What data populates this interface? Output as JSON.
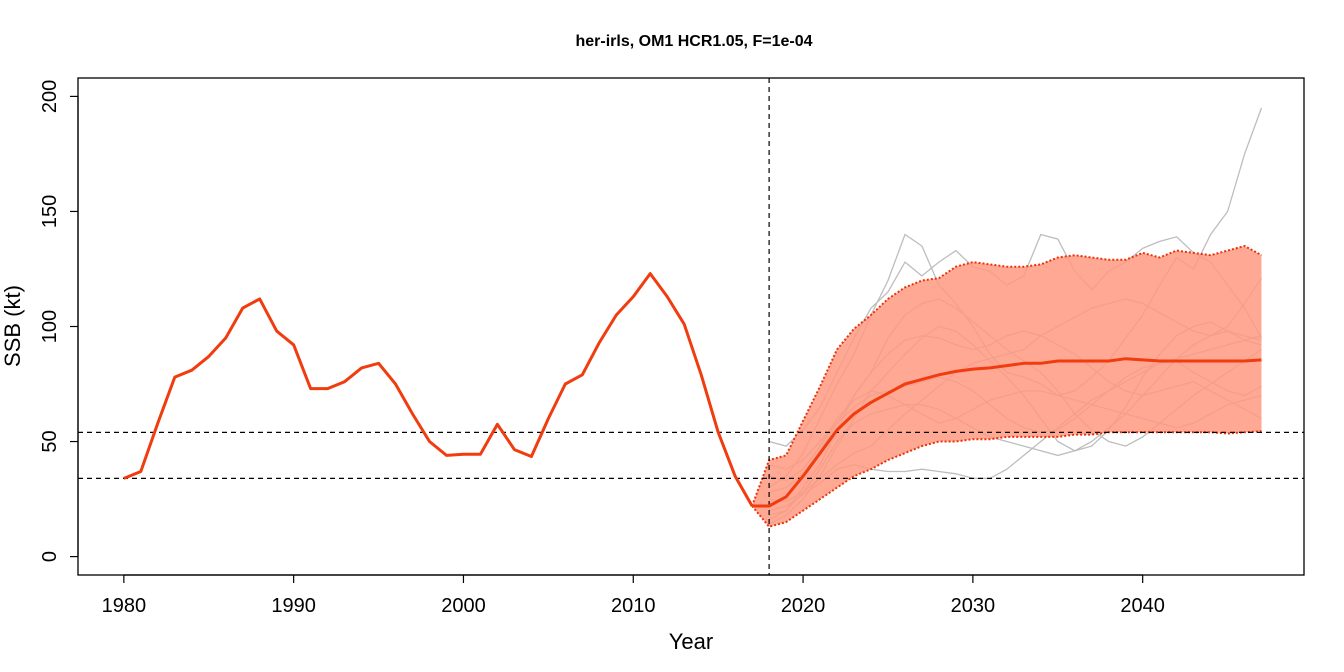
{
  "chart_data": {
    "type": "line",
    "title": "her-irls, OM1 HCR1.05, F=1e-04",
    "xlabel": "Year",
    "ylabel": "SSB (kt)",
    "xlim": [
      1977.3,
      2049.5
    ],
    "ylim": [
      -8,
      208
    ],
    "xticks": [
      1980,
      1990,
      2000,
      2010,
      2020,
      2030,
      2040
    ],
    "yticks": [
      0,
      50,
      100,
      150,
      200
    ],
    "grid": false,
    "colors": {
      "median": "#f03c0f",
      "band_fill": "#ff9a82",
      "band_edge": "#e8330a",
      "iterations": "#bdbdbd",
      "reflines": "#000000"
    },
    "reference_lines": {
      "vertical_x": [
        2018
      ],
      "horizontal_y": [
        54,
        34
      ]
    },
    "historical": {
      "x": [
        1980,
        1981,
        1982,
        1983,
        1984,
        1985,
        1986,
        1987,
        1988,
        1989,
        1990,
        1991,
        1992,
        1993,
        1994,
        1995,
        1996,
        1997,
        1998,
        1999,
        2000,
        2001,
        2002,
        2003,
        2004,
        2005,
        2006,
        2007,
        2008,
        2009,
        2010,
        2011,
        2012,
        2013,
        2014,
        2015,
        2016,
        2017
      ],
      "y": [
        34,
        37,
        58,
        78,
        81,
        87,
        95,
        108,
        112,
        98,
        92,
        73,
        73,
        76,
        82,
        84,
        75,
        62,
        50,
        44,
        44.5,
        44.5,
        57.5,
        46.5,
        43.5,
        60,
        75,
        79,
        93,
        105,
        113,
        123,
        113,
        101,
        79,
        54,
        35,
        22
      ]
    },
    "projection": {
      "x": [
        2017,
        2018,
        2019,
        2020,
        2021,
        2022,
        2023,
        2024,
        2025,
        2026,
        2027,
        2028,
        2029,
        2030,
        2031,
        2032,
        2033,
        2034,
        2035,
        2036,
        2037,
        2038,
        2039,
        2040,
        2041,
        2042,
        2043,
        2044,
        2045,
        2046,
        2047
      ],
      "median": [
        22,
        22,
        26,
        35,
        45,
        55,
        62,
        67,
        71,
        75,
        77,
        79,
        80.5,
        81.5,
        82,
        83,
        84,
        84,
        85,
        85,
        85,
        85,
        86,
        85.5,
        85,
        85,
        85,
        85,
        85,
        85,
        85.5
      ],
      "upper": [
        22,
        42,
        44,
        59,
        74,
        90,
        99,
        105,
        112,
        117,
        120,
        121,
        126,
        128,
        127,
        126,
        126,
        127,
        130,
        131,
        130,
        129,
        129,
        132,
        130,
        133,
        132,
        131,
        133,
        135,
        131
      ],
      "lower": [
        22,
        13,
        15,
        20,
        25,
        30,
        35,
        38,
        42,
        45,
        48,
        50,
        50,
        51,
        51,
        52,
        52,
        52,
        52,
        53,
        53,
        54,
        54,
        54,
        54,
        54,
        54,
        54,
        53.5,
        54,
        54.5
      ]
    },
    "iterations": [
      {
        "x": [
          2018,
          2019,
          2020,
          2021,
          2022,
          2023,
          2024,
          2025,
          2026,
          2027,
          2028,
          2029,
          2030,
          2031,
          2032,
          2033,
          2034,
          2035,
          2036,
          2037,
          2038,
          2039,
          2040,
          2041,
          2042,
          2043,
          2044,
          2045,
          2046,
          2047
        ],
        "y": [
          30,
          35,
          45,
          60,
          75,
          88,
          105,
          120,
          140,
          135,
          118,
          110,
          100,
          88,
          80,
          78,
          75,
          70,
          72,
          78,
          85,
          95,
          105,
          118,
          130,
          125,
          140,
          150,
          175,
          195
        ]
      },
      {
        "x": [
          2018,
          2019,
          2020,
          2021,
          2022,
          2023,
          2024,
          2025,
          2026,
          2027,
          2028,
          2029,
          2030,
          2031,
          2032,
          2033,
          2034,
          2035,
          2036,
          2037,
          2038,
          2039,
          2040,
          2041,
          2042,
          2043,
          2044,
          2045,
          2046,
          2047
        ],
        "y": [
          50,
          48,
          55,
          65,
          80,
          95,
          108,
          115,
          128,
          122,
          128,
          133,
          126,
          124,
          118,
          122,
          140,
          138,
          124,
          116,
          124,
          128,
          134,
          137,
          139,
          132,
          128,
          118,
          108,
          95
        ]
      },
      {
        "x": [
          2018,
          2019,
          2020,
          2021,
          2022,
          2023,
          2024,
          2025,
          2026,
          2027,
          2028,
          2029,
          2030,
          2031,
          2032,
          2033,
          2034,
          2035,
          2036,
          2037,
          2038,
          2039,
          2040,
          2041,
          2042,
          2043,
          2044,
          2045,
          2046,
          2047
        ],
        "y": [
          18,
          20,
          30,
          40,
          55,
          70,
          80,
          95,
          105,
          110,
          112,
          108,
          102,
          96,
          90,
          85,
          80,
          72,
          62,
          55,
          50,
          48,
          52,
          58,
          64,
          70,
          75,
          80,
          85,
          90
        ]
      },
      {
        "x": [
          2018,
          2019,
          2020,
          2021,
          2022,
          2023,
          2024,
          2025,
          2026,
          2027,
          2028,
          2029,
          2030,
          2031,
          2032,
          2033,
          2034,
          2035,
          2036,
          2037,
          2038,
          2039,
          2040,
          2041,
          2042,
          2043,
          2044,
          2045,
          2046,
          2047
        ],
        "y": [
          14,
          18,
          25,
          35,
          48,
          60,
          72,
          80,
          88,
          95,
          100,
          98,
          92,
          85,
          78,
          70,
          60,
          50,
          46,
          48,
          55,
          65,
          78,
          88,
          96,
          100,
          102,
          98,
          94,
          92
        ]
      },
      {
        "x": [
          2018,
          2019,
          2020,
          2021,
          2022,
          2023,
          2024,
          2025,
          2026,
          2027,
          2028,
          2029,
          2030,
          2031,
          2032,
          2033,
          2034,
          2035,
          2036,
          2037,
          2038,
          2039,
          2040,
          2041,
          2042,
          2043,
          2044,
          2045,
          2046,
          2047
        ],
        "y": [
          40,
          38,
          42,
          50,
          58,
          65,
          70,
          72,
          74,
          76,
          78,
          76,
          72,
          66,
          60,
          56,
          54,
          55,
          60,
          66,
          72,
          78,
          82,
          84,
          85,
          80,
          76,
          72,
          70,
          74
        ]
      },
      {
        "x": [
          2018,
          2019,
          2020,
          2021,
          2022,
          2023,
          2024,
          2025,
          2026,
          2027,
          2028,
          2029,
          2030,
          2031,
          2032,
          2033,
          2034,
          2035,
          2036,
          2037,
          2038,
          2039,
          2040,
          2041,
          2042,
          2043,
          2044,
          2045,
          2046,
          2047
        ],
        "y": [
          25,
          24,
          28,
          34,
          40,
          45,
          48,
          55,
          62,
          68,
          74,
          80,
          84,
          86,
          88,
          90,
          96,
          100,
          104,
          108,
          110,
          112,
          110,
          106,
          102,
          98,
          96,
          100,
          110,
          121
        ]
      },
      {
        "x": [
          2018,
          2019,
          2020,
          2021,
          2022,
          2023,
          2024,
          2025,
          2026,
          2027,
          2028,
          2029,
          2030,
          2031,
          2032,
          2033,
          2034,
          2035,
          2036,
          2037,
          2038,
          2039,
          2040,
          2041,
          2042,
          2043,
          2044,
          2045,
          2046,
          2047
        ],
        "y": [
          20,
          22,
          27,
          32,
          38,
          40,
          38,
          37,
          37,
          38,
          37,
          36,
          34,
          34,
          38,
          44,
          50,
          56,
          62,
          68,
          72,
          76,
          80,
          84,
          86,
          88,
          90,
          92,
          94,
          96
        ]
      },
      {
        "x": [
          2018,
          2019,
          2020,
          2021,
          2022,
          2023,
          2024,
          2025,
          2026,
          2027,
          2028,
          2029,
          2030,
          2031,
          2032,
          2033,
          2034,
          2035,
          2036,
          2037,
          2038,
          2039,
          2040,
          2041,
          2042,
          2043,
          2044,
          2045,
          2046,
          2047
        ],
        "y": [
          35,
          33,
          38,
          48,
          60,
          68,
          72,
          70,
          66,
          62,
          58,
          60,
          64,
          68,
          70,
          72,
          72,
          70,
          68,
          66,
          64,
          62,
          60,
          58,
          56,
          58,
          62,
          66,
          68,
          70
        ]
      },
      {
        "x": [
          2018,
          2019,
          2020,
          2021,
          2022,
          2023,
          2024,
          2025,
          2026,
          2027,
          2028,
          2029,
          2030,
          2031,
          2032,
          2033,
          2034,
          2035,
          2036,
          2037,
          2038,
          2039,
          2040,
          2041,
          2042,
          2043,
          2044,
          2045,
          2046,
          2047
        ],
        "y": [
          16,
          20,
          28,
          38,
          50,
          58,
          62,
          64,
          66,
          66,
          64,
          60,
          56,
          52,
          50,
          48,
          46,
          44,
          46,
          50,
          56,
          62,
          70,
          78,
          86,
          92,
          96,
          98,
          96,
          94
        ]
      },
      {
        "x": [
          2018,
          2019,
          2020,
          2021,
          2022,
          2023,
          2024,
          2025,
          2026,
          2027,
          2028,
          2029,
          2030,
          2031,
          2032,
          2033,
          2034,
          2035,
          2036,
          2037,
          2038,
          2039,
          2040,
          2041,
          2042,
          2043,
          2044,
          2045,
          2046,
          2047
        ],
        "y": [
          28,
          30,
          36,
          46,
          58,
          70,
          80,
          88,
          94,
          96,
          95,
          92,
          90,
          92,
          96,
          98,
          96,
          92,
          88,
          82,
          76,
          72,
          70,
          72,
          74,
          76,
          72,
          68,
          64,
          60
        ]
      }
    ]
  }
}
